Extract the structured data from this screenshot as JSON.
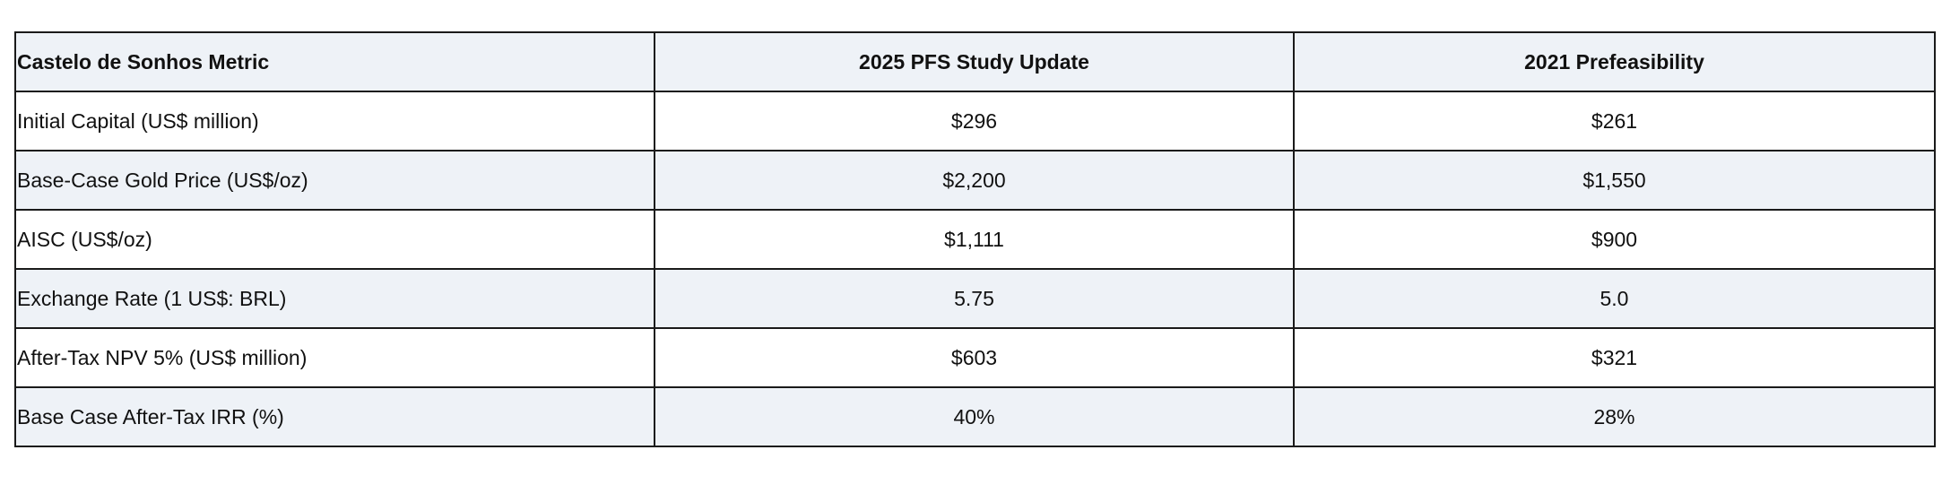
{
  "table": {
    "headers": [
      "Castelo de Sonhos Metric",
      "2025 PFS Study Update",
      "2021 Prefeasibility"
    ],
    "rows": [
      [
        "Initial Capital (US$ million)",
        "$296",
        "$261"
      ],
      [
        "Base-Case Gold Price (US$/oz)",
        "$2,200",
        "$1,550"
      ],
      [
        "AISC (US$/oz)",
        "$1,111",
        "$900"
      ],
      [
        "Exchange Rate (1 US$: BRL)",
        "5.75",
        "5.0"
      ],
      [
        "After-Tax NPV 5% (US$ million)",
        "$603",
        "$321"
      ],
      [
        "Base Case After-Tax IRR (%)",
        "40%",
        "28%"
      ]
    ]
  },
  "colors": {
    "header_bg": "#eef2f7",
    "shaded_row_bg": "#eef2f7",
    "border": "#1a1a1a"
  }
}
